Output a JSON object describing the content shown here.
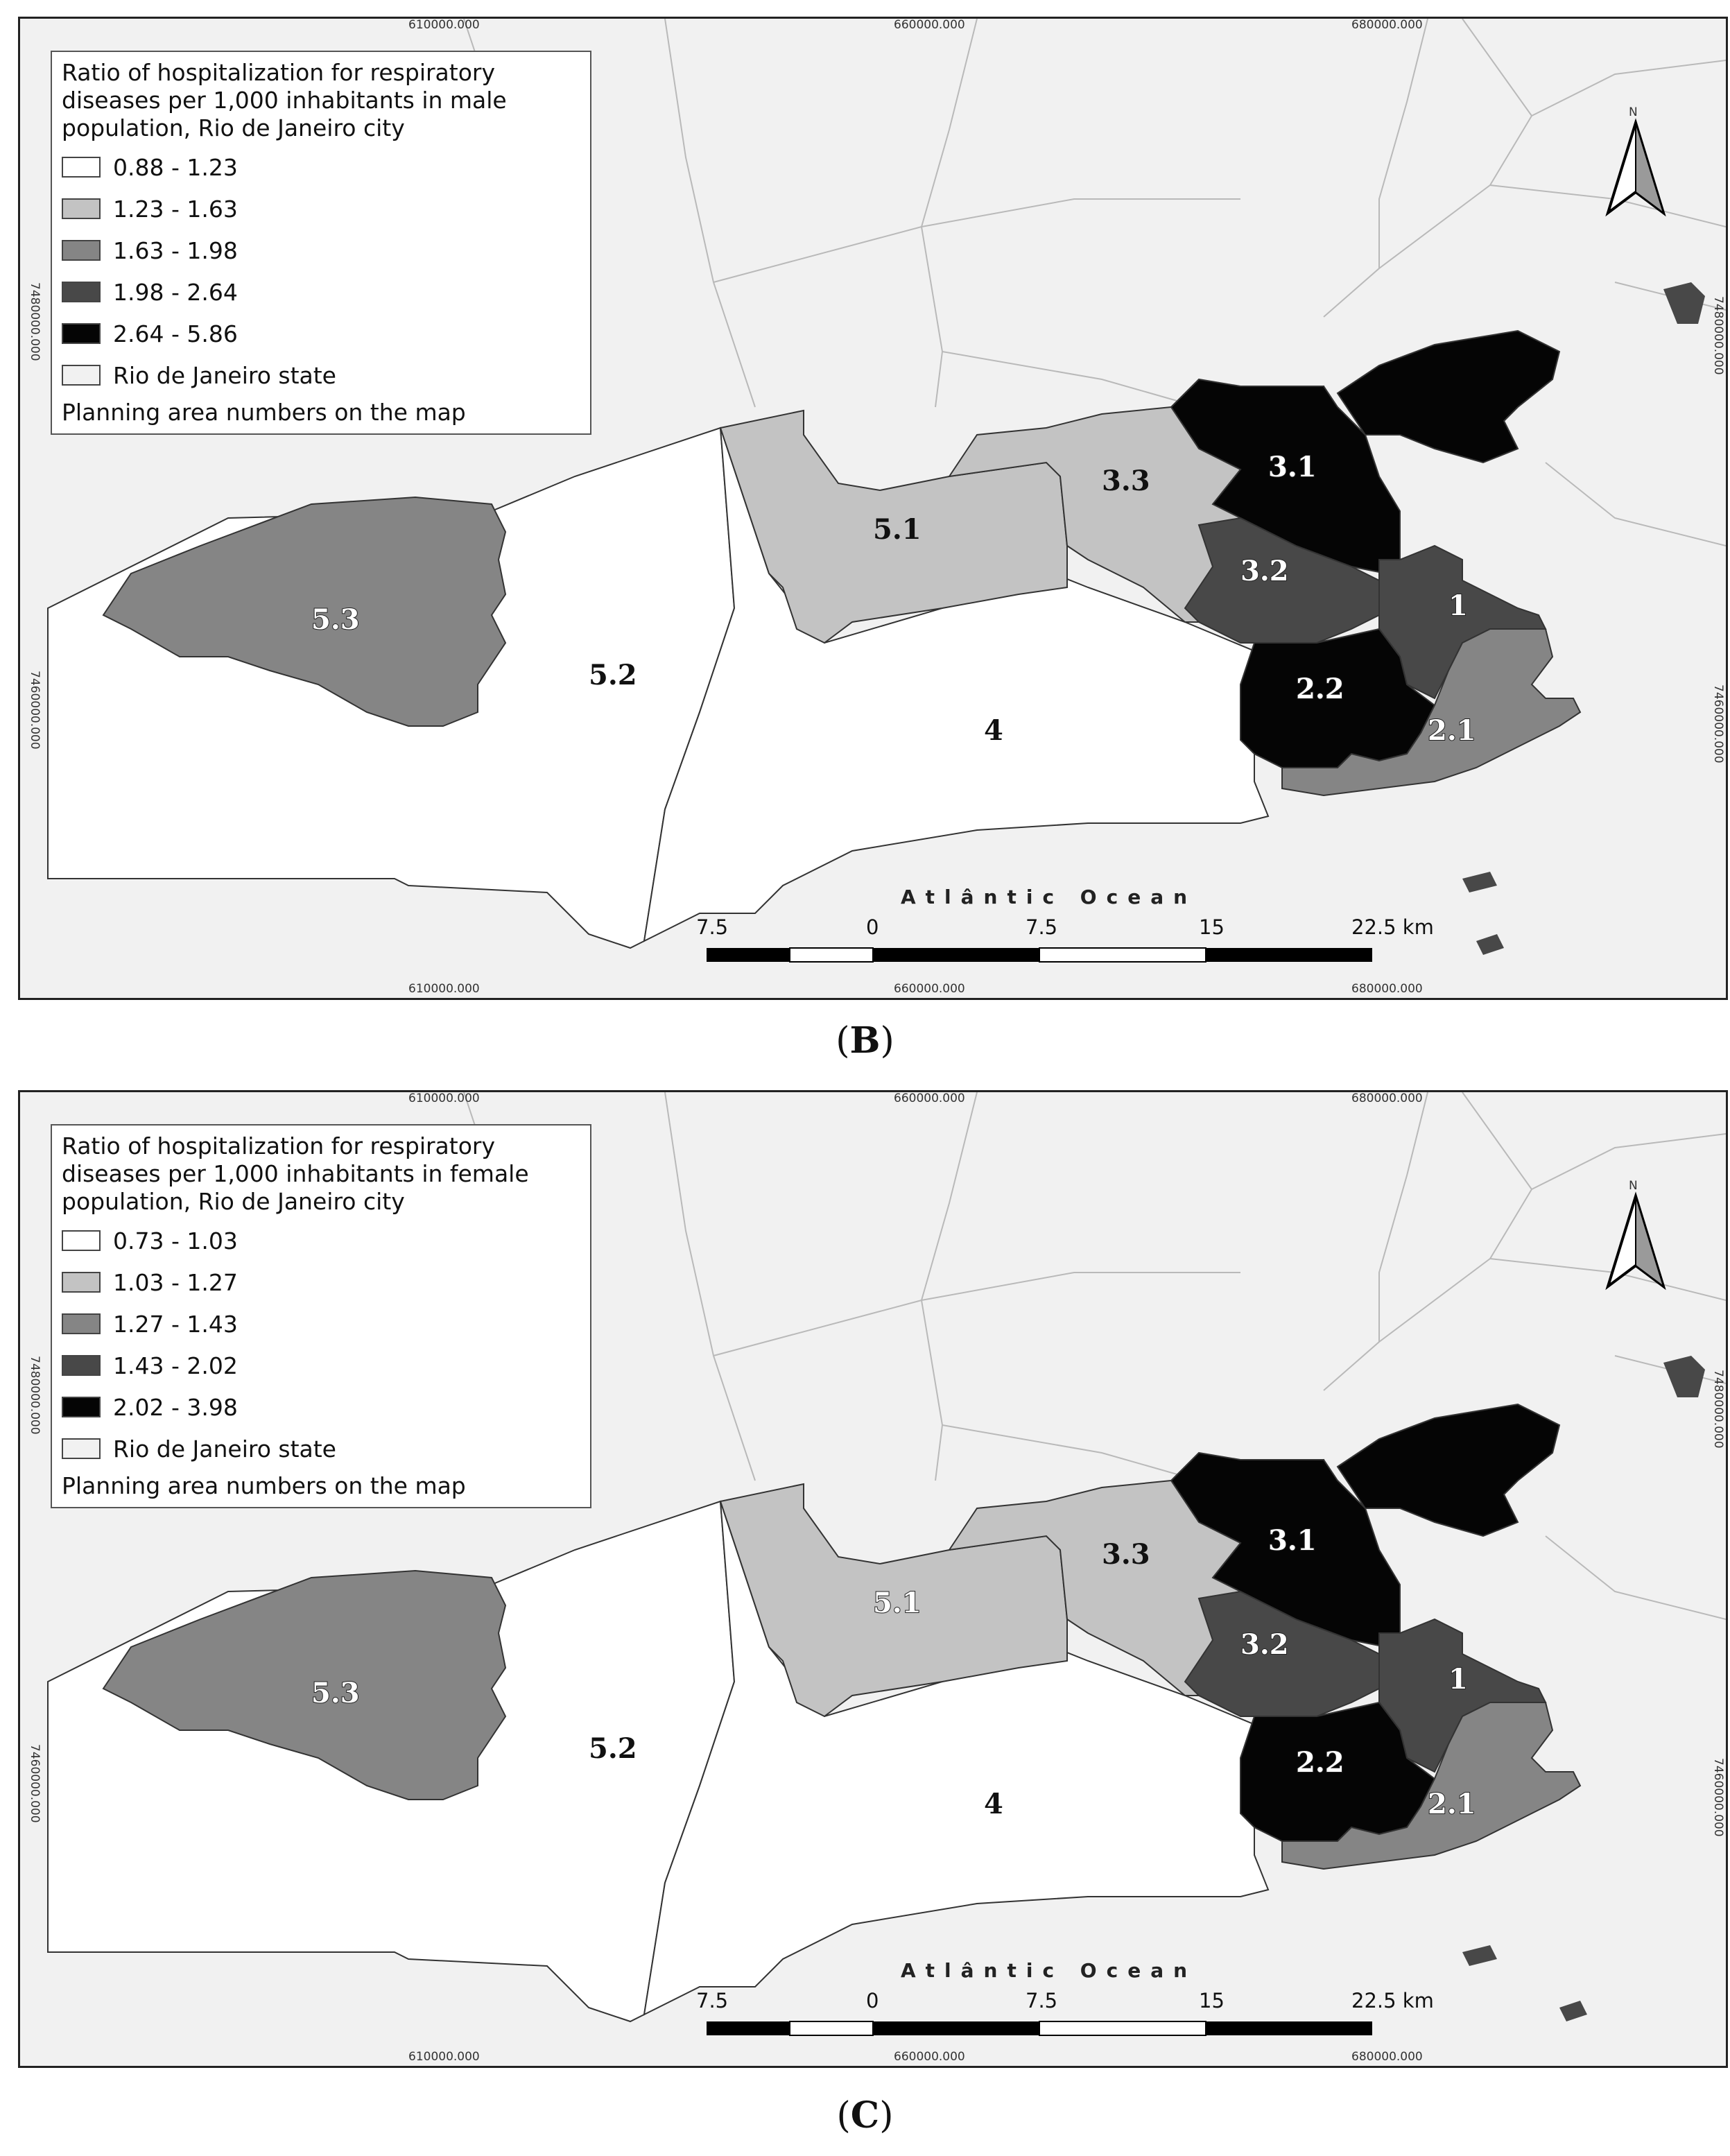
{
  "panels": [
    {
      "id": "B",
      "legend": {
        "title": "Ratio of hospitalization for respiratory diseases per 1,000 inhabitants in male population, Rio de Janeiro city",
        "classes": [
          {
            "label": "0.88 - 1.23",
            "color": "#ffffff"
          },
          {
            "label": "1.23 - 1.63",
            "color": "#c3c3c3"
          },
          {
            "label": "1.63 - 1.98",
            "color": "#858585"
          },
          {
            "label": "1.98 - 2.64",
            "color": "#484848"
          },
          {
            "label": "2.64 - 5.86",
            "color": "#050505"
          }
        ],
        "state_label": "Rio de Janeiro state",
        "state_color": "#f1f1f1",
        "footer": "Planning area numbers on the map"
      },
      "grid_top": [
        "610000.000",
        "660000.000",
        "680000.000"
      ],
      "grid_bottom": [
        "610000.000",
        "660000.000",
        "680000.000"
      ],
      "grid_left": "7480000.000",
      "grid_left_lower": "7460000.000",
      "grid_right": "7480000.000",
      "grid_right_lower": "7460000.000",
      "north_label": "N",
      "ocean_label": "Atlântic Ocean",
      "scale_labels": [
        "7.5",
        "0",
        "7.5",
        "15",
        "22.5 km"
      ],
      "areas": [
        {
          "label": "1",
          "class": 3
        },
        {
          "label": "2.1",
          "class": 2
        },
        {
          "label": "2.2",
          "class": 4
        },
        {
          "label": "3.1",
          "class": 4
        },
        {
          "label": "3.2",
          "class": 3
        },
        {
          "label": "3.3",
          "class": 1
        },
        {
          "label": "4",
          "class": 0
        },
        {
          "label": "5.1",
          "class": 1
        },
        {
          "label": "5.2",
          "class": 0
        },
        {
          "label": "5.3",
          "class": 2
        }
      ],
      "caption": "B"
    },
    {
      "id": "C",
      "legend": {
        "title": "Ratio of hospitalization for respiratory diseases per 1,000 inhabitants in female population, Rio de Janeiro city",
        "classes": [
          {
            "label": "0.73 - 1.03",
            "color": "#ffffff"
          },
          {
            "label": "1.03 - 1.27",
            "color": "#c3c3c3"
          },
          {
            "label": "1.27 - 1.43",
            "color": "#858585"
          },
          {
            "label": "1.43 - 2.02",
            "color": "#484848"
          },
          {
            "label": "2.02 - 3.98",
            "color": "#050505"
          }
        ],
        "state_label": "Rio de Janeiro state",
        "state_color": "#f1f1f1",
        "footer": "Planning area numbers on the map"
      },
      "grid_top": [
        "610000.000",
        "660000.000",
        "680000.000"
      ],
      "grid_bottom": [
        "610000.000",
        "660000.000",
        "680000.000"
      ],
      "grid_left": "7480000.000",
      "grid_left_lower": "7460000.000",
      "grid_right": "7480000.000",
      "grid_right_lower": "7460000.000",
      "north_label": "N",
      "ocean_label": "Atlântic Ocean",
      "scale_labels": [
        "7.5",
        "0",
        "7.5",
        "15",
        "22.5 km"
      ],
      "areas": [
        {
          "label": "1",
          "class": 3
        },
        {
          "label": "2.1",
          "class": 2
        },
        {
          "label": "2.2",
          "class": 4
        },
        {
          "label": "3.1",
          "class": 4
        },
        {
          "label": "3.2",
          "class": 3
        },
        {
          "label": "3.3",
          "class": 1
        },
        {
          "label": "4",
          "class": 0
        },
        {
          "label": "5.1",
          "class": 1
        },
        {
          "label": "5.2",
          "class": 0
        },
        {
          "label": "5.3",
          "class": 2
        }
      ],
      "caption": "C"
    }
  ]
}
